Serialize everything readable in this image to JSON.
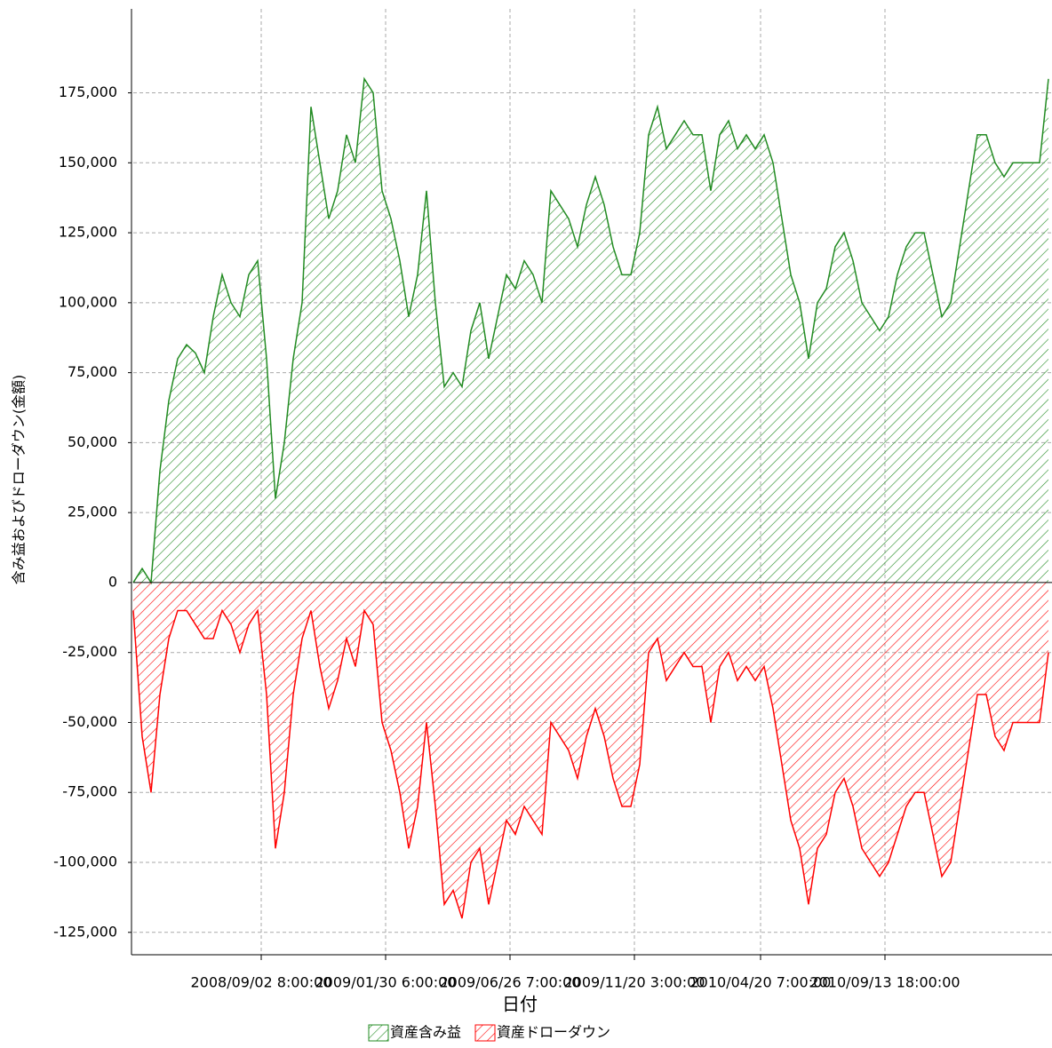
{
  "chart_data": {
    "type": "area",
    "y_label": "含み益およびドローダウン(金額)",
    "x_label": "日付",
    "x": [
      0,
      1,
      2,
      3,
      4,
      5,
      6,
      7,
      8,
      9,
      10,
      11,
      12,
      13,
      14,
      15,
      16,
      17,
      18,
      19,
      20,
      21,
      22,
      23,
      24,
      25,
      26,
      27,
      28,
      29,
      30,
      31,
      32,
      33,
      34,
      35,
      36,
      37,
      38,
      39,
      40,
      41,
      42,
      43,
      44,
      45,
      46,
      47,
      48,
      49,
      50,
      51,
      52,
      53,
      54,
      55,
      56,
      57,
      58,
      59,
      60,
      61,
      62,
      63,
      64,
      65,
      66,
      67,
      68,
      69,
      70,
      71,
      72,
      73,
      74,
      75,
      76,
      77,
      78,
      79,
      80,
      81,
      82,
      83,
      84,
      85,
      86,
      87,
      88,
      89,
      90,
      91,
      92,
      93,
      94,
      95,
      96,
      97,
      98,
      99,
      100,
      101,
      102,
      103
    ],
    "series": [
      {
        "name": "資産含み益",
        "color": "#228b22",
        "values": [
          0,
          5000,
          0,
          40000,
          65000,
          80000,
          85000,
          82000,
          75000,
          95000,
          110000,
          100000,
          95000,
          110000,
          115000,
          80000,
          30000,
          50000,
          80000,
          100000,
          170000,
          150000,
          130000,
          140000,
          160000,
          150000,
          180000,
          175000,
          140000,
          130000,
          115000,
          95000,
          110000,
          140000,
          100000,
          70000,
          75000,
          70000,
          90000,
          100000,
          80000,
          95000,
          110000,
          105000,
          115000,
          110000,
          100000,
          140000,
          135000,
          130000,
          120000,
          135000,
          145000,
          135000,
          120000,
          110000,
          110000,
          125000,
          160000,
          170000,
          155000,
          160000,
          165000,
          160000,
          160000,
          140000,
          160000,
          165000,
          155000,
          160000,
          155000,
          160000,
          150000,
          130000,
          110000,
          100000,
          80000,
          100000,
          105000,
          120000,
          125000,
          115000,
          100000,
          95000,
          90000,
          95000,
          110000,
          120000,
          125000,
          125000,
          110000,
          95000,
          100000,
          120000,
          140000,
          160000,
          160000,
          150000,
          145000,
          150000,
          150000,
          150000,
          150000,
          180000
        ]
      },
      {
        "name": "資産ドローダウン",
        "color": "#ff0000",
        "values": [
          -10000,
          -55000,
          -75000,
          -40000,
          -20000,
          -10000,
          -10000,
          -15000,
          -20000,
          -20000,
          -10000,
          -15000,
          -25000,
          -15000,
          -10000,
          -40000,
          -95000,
          -75000,
          -40000,
          -20000,
          -10000,
          -30000,
          -45000,
          -35000,
          -20000,
          -30000,
          -10000,
          -15000,
          -50000,
          -60000,
          -75000,
          -95000,
          -80000,
          -50000,
          -80000,
          -115000,
          -110000,
          -120000,
          -100000,
          -95000,
          -115000,
          -100000,
          -85000,
          -90000,
          -80000,
          -85000,
          -90000,
          -50000,
          -55000,
          -60000,
          -70000,
          -55000,
          -45000,
          -55000,
          -70000,
          -80000,
          -80000,
          -65000,
          -25000,
          -20000,
          -35000,
          -30000,
          -25000,
          -30000,
          -30000,
          -50000,
          -30000,
          -25000,
          -35000,
          -30000,
          -35000,
          -30000,
          -45000,
          -65000,
          -85000,
          -95000,
          -115000,
          -95000,
          -90000,
          -75000,
          -70000,
          -80000,
          -95000,
          -100000,
          -105000,
          -100000,
          -90000,
          -80000,
          -75000,
          -75000,
          -90000,
          -105000,
          -100000,
          -80000,
          -60000,
          -40000,
          -40000,
          -55000,
          -60000,
          -50000,
          -50000,
          -50000,
          -50000,
          -25000
        ]
      }
    ],
    "xlim": [
      0,
      103.4
    ],
    "xticks": [
      {
        "value": 14.4,
        "label": "2008/09/02 8:00:00"
      },
      {
        "value": 28.4,
        "label": "2009/01/30 6:00:00"
      },
      {
        "value": 42.4,
        "label": "2009/06/26 7:00:00"
      },
      {
        "value": 56.4,
        "label": "2009/11/20 3:00:00"
      },
      {
        "value": 70.6,
        "label": "2010/04/20 7:00:00"
      },
      {
        "value": 84.6,
        "label": "2010/09/13 18:00:00"
      }
    ],
    "ylim": [
      -133000,
      205000
    ],
    "yticks": [
      {
        "value": -125000,
        "label": "-125,000"
      },
      {
        "value": -100000,
        "label": "-100,000"
      },
      {
        "value": -75000,
        "label": "-75,000"
      },
      {
        "value": -50000,
        "label": "-50,000"
      },
      {
        "value": -25000,
        "label": "-25,000"
      },
      0,
      {
        "value": 25000,
        "label": "25,000"
      },
      {
        "value": 50000,
        "label": "50,000"
      },
      {
        "value": 75000,
        "label": "75,000"
      },
      {
        "value": 100000,
        "label": "100,000"
      },
      {
        "value": 125000,
        "label": "125,000"
      },
      {
        "value": 150000,
        "label": "150,000"
      },
      {
        "value": 175000,
        "label": "175,000"
      }
    ],
    "grid": true,
    "legend": "bottom",
    "hatch": true
  }
}
